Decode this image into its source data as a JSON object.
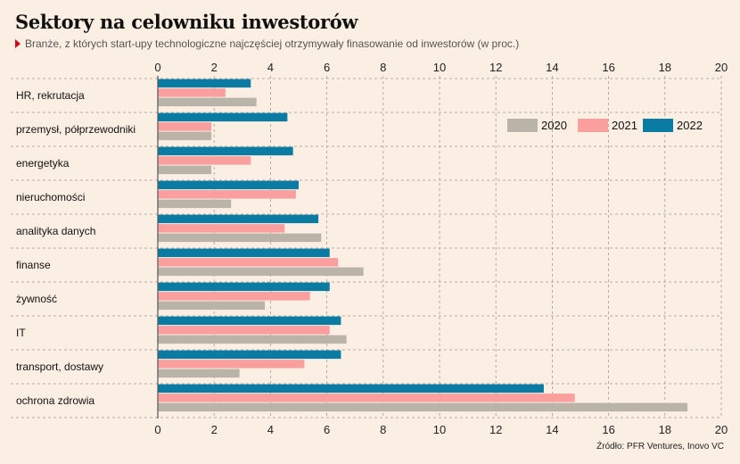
{
  "header": {
    "title": "Sektory na celowniku inwestorów",
    "subtitle": "Branże, z których start-upy technologiczne najczęściej otrzymywały finasowanie od inwestorów (w proc.)"
  },
  "footer": {
    "source": "Źródło: PFR Ventures, Inovo VC"
  },
  "chart_data": {
    "type": "bar",
    "orientation": "horizontal",
    "categories": [
      "HR, rekrutacja",
      "przemysł, półprzewodniki",
      "energetyka",
      "nieruchomości",
      "analityka danych",
      "finanse",
      "żywność",
      "IT",
      "transport, dostawy",
      "ochrona zdrowia"
    ],
    "series": [
      {
        "name": "2022",
        "color": "#0a7ba3",
        "values": [
          3.3,
          4.6,
          4.8,
          5.0,
          5.7,
          6.1,
          6.1,
          6.5,
          6.5,
          13.7
        ]
      },
      {
        "name": "2021",
        "color": "#fa9e9e",
        "values": [
          2.4,
          1.9,
          3.3,
          4.9,
          4.5,
          6.4,
          5.4,
          6.1,
          5.2,
          14.8
        ]
      },
      {
        "name": "2020",
        "color": "#b9b4a7",
        "values": [
          3.5,
          1.9,
          1.9,
          2.6,
          5.8,
          7.3,
          3.8,
          6.7,
          2.9,
          18.8
        ]
      }
    ],
    "legend_order": [
      "2020",
      "2021",
      "2022"
    ],
    "legend_position": "top-right",
    "xlim": [
      0,
      20
    ],
    "xticks": [
      "0",
      "2",
      "4",
      "6",
      "8",
      "10",
      "12",
      "14",
      "16",
      "18",
      "20"
    ],
    "tick_positions": "top-and-bottom",
    "grid": true
  }
}
